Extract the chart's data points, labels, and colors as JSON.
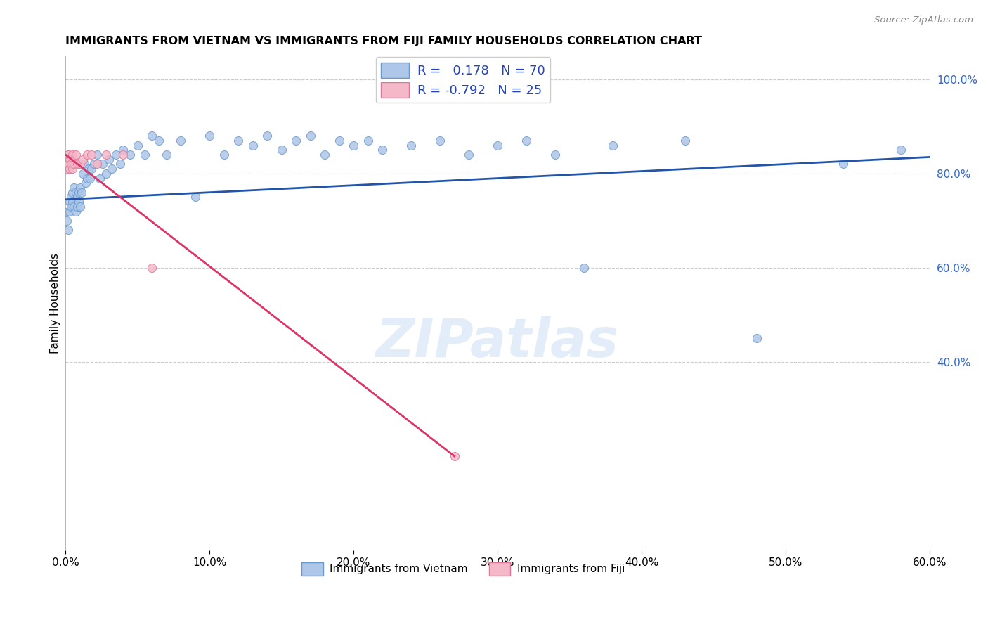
{
  "title": "IMMIGRANTS FROM VIETNAM VS IMMIGRANTS FROM FIJI FAMILY HOUSEHOLDS CORRELATION CHART",
  "source": "Source: ZipAtlas.com",
  "ylabel": "Family Households",
  "xlim": [
    0.0,
    0.6
  ],
  "ylim": [
    0.0,
    1.05
  ],
  "x_ticks": [
    0.0,
    0.1,
    0.2,
    0.3,
    0.4,
    0.5,
    0.6
  ],
  "y_ticks_right": [
    0.4,
    0.6,
    0.8,
    1.0
  ],
  "vietnam_color": "#aec6e8",
  "fiji_color": "#f4b8c8",
  "vietnam_edge": "#6699cc",
  "fiji_edge": "#dd7799",
  "trend_vietnam_color": "#2255aa",
  "trend_fiji_color": "#dd3366",
  "legend_label1": "Immigrants from Vietnam",
  "legend_label2": "Immigrants from Fiji",
  "watermark": "ZIPatlas",
  "background_color": "#ffffff",
  "grid_color": "#cccccc",
  "vietnam_x": [
    0.001,
    0.002,
    0.002,
    0.003,
    0.003,
    0.004,
    0.004,
    0.005,
    0.005,
    0.006,
    0.006,
    0.007,
    0.007,
    0.008,
    0.008,
    0.009,
    0.009,
    0.01,
    0.01,
    0.011,
    0.012,
    0.013,
    0.014,
    0.015,
    0.016,
    0.017,
    0.018,
    0.02,
    0.022,
    0.024,
    0.026,
    0.028,
    0.03,
    0.032,
    0.035,
    0.038,
    0.04,
    0.045,
    0.05,
    0.055,
    0.06,
    0.065,
    0.07,
    0.08,
    0.09,
    0.1,
    0.11,
    0.12,
    0.13,
    0.14,
    0.15,
    0.16,
    0.17,
    0.18,
    0.19,
    0.2,
    0.21,
    0.22,
    0.24,
    0.26,
    0.28,
    0.3,
    0.32,
    0.34,
    0.36,
    0.38,
    0.43,
    0.48,
    0.54,
    0.58
  ],
  "vietnam_y": [
    0.7,
    0.72,
    0.68,
    0.74,
    0.72,
    0.75,
    0.73,
    0.76,
    0.74,
    0.77,
    0.73,
    0.76,
    0.72,
    0.75,
    0.73,
    0.76,
    0.74,
    0.77,
    0.73,
    0.76,
    0.8,
    0.82,
    0.78,
    0.79,
    0.81,
    0.79,
    0.81,
    0.82,
    0.84,
    0.79,
    0.82,
    0.8,
    0.83,
    0.81,
    0.84,
    0.82,
    0.85,
    0.84,
    0.86,
    0.84,
    0.88,
    0.87,
    0.84,
    0.87,
    0.75,
    0.88,
    0.84,
    0.87,
    0.86,
    0.88,
    0.85,
    0.87,
    0.88,
    0.84,
    0.87,
    0.86,
    0.87,
    0.85,
    0.86,
    0.87,
    0.84,
    0.86,
    0.87,
    0.84,
    0.6,
    0.86,
    0.87,
    0.45,
    0.82,
    0.85
  ],
  "fiji_x": [
    0.001,
    0.001,
    0.002,
    0.002,
    0.002,
    0.003,
    0.003,
    0.003,
    0.004,
    0.004,
    0.005,
    0.005,
    0.006,
    0.006,
    0.007,
    0.008,
    0.01,
    0.012,
    0.015,
    0.018,
    0.022,
    0.028,
    0.04,
    0.06,
    0.27
  ],
  "fiji_y": [
    0.83,
    0.81,
    0.84,
    0.82,
    0.84,
    0.81,
    0.83,
    0.81,
    0.83,
    0.82,
    0.84,
    0.81,
    0.83,
    0.82,
    0.84,
    0.82,
    0.82,
    0.83,
    0.84,
    0.84,
    0.82,
    0.84,
    0.84,
    0.6,
    0.2
  ],
  "trend_viet_x0": 0.0,
  "trend_viet_y0": 0.745,
  "trend_viet_x1": 0.6,
  "trend_viet_y1": 0.835,
  "trend_fiji_x0": 0.0,
  "trend_fiji_y0": 0.84,
  "trend_fiji_x1": 0.27,
  "trend_fiji_y1": 0.2
}
